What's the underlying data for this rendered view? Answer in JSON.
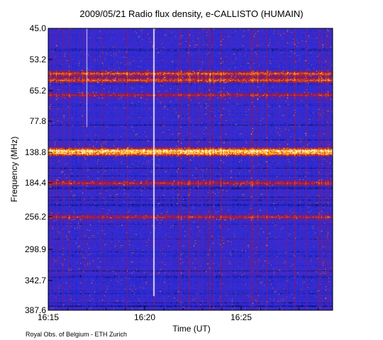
{
  "chart_data": {
    "type": "heatmap",
    "title": "2009/05/21  Radio flux density, e-CALLISTO (HUMAIN)",
    "xlabel": "Time (UT)",
    "ylabel": "Frequency (MHz)",
    "x_ticks": [
      "16:15",
      "16:20",
      "16:25"
    ],
    "x_range": [
      "16:15",
      "16:29:30"
    ],
    "y_ticks": [
      "45.0",
      "53.2",
      "65.2",
      "77.8",
      "138.8",
      "184.4",
      "256.2",
      "298.9",
      "342.7",
      "387.6"
    ],
    "y_range": [
      45.0,
      387.6
    ],
    "y_axis": "nonlinear, frequency increasing downward",
    "colormap": [
      "#000000",
      "#1a1aa8",
      "#3030e0",
      "#6a1a8a",
      "#c02020",
      "#ff7a00",
      "#ffd000",
      "#ffffff"
    ],
    "emission_bands_MHz": [
      {
        "freq": 58.5,
        "intensity": "high"
      },
      {
        "freq": 61.0,
        "intensity": "high"
      },
      {
        "freq": 67.0,
        "intensity": "medium"
      },
      {
        "freq": 134.0,
        "intensity": "very high"
      },
      {
        "freq": 140.0,
        "intensity": "very high"
      },
      {
        "freq": 184.4,
        "intensity": "medium"
      },
      {
        "freq": 256.2,
        "intensity": "medium"
      }
    ]
  },
  "credit": "Royal Obs. of Belgium - ETH Zurich"
}
